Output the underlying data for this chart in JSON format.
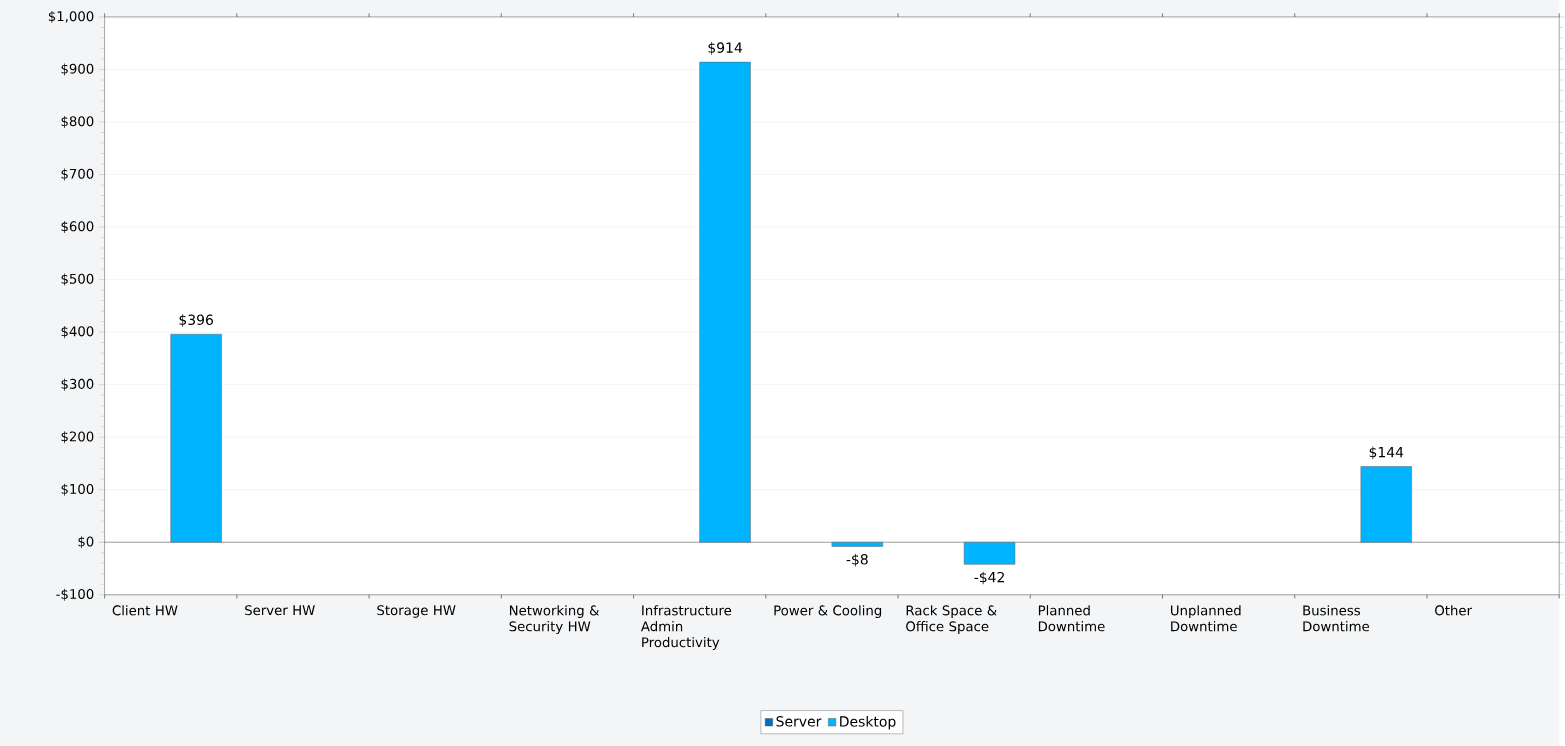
{
  "chart_data": {
    "type": "bar",
    "categories": [
      "Client HW",
      "Server HW",
      "Storage HW",
      "Networking & Security HW",
      "Infrastructure Admin Productivity",
      "Power & Cooling",
      "Rack Space & Office Space",
      "Planned Downtime",
      "Unplanned Downtime",
      "Business Downtime",
      "Other"
    ],
    "series": [
      {
        "name": "Server",
        "color": "#0070c0",
        "values": [
          null,
          null,
          null,
          null,
          null,
          null,
          null,
          null,
          null,
          null,
          null
        ]
      },
      {
        "name": "Desktop",
        "color": "#00b4ff",
        "values": [
          396,
          null,
          null,
          null,
          914,
          -8,
          -42,
          null,
          null,
          144,
          null
        ],
        "value_labels": [
          "$396",
          null,
          null,
          null,
          "$914",
          "-$8",
          "-$42",
          null,
          null,
          "$144",
          null
        ]
      }
    ],
    "ylim": [
      -100,
      1000
    ],
    "yticks": [
      {
        "value": -100,
        "label": "-$100"
      },
      {
        "value": 0,
        "label": "$0"
      },
      {
        "value": 100,
        "label": "$100"
      },
      {
        "value": 200,
        "label": "$200"
      },
      {
        "value": 300,
        "label": "$300"
      },
      {
        "value": 400,
        "label": "$400"
      },
      {
        "value": 500,
        "label": "$500"
      },
      {
        "value": 600,
        "label": "$600"
      },
      {
        "value": 700,
        "label": "$700"
      },
      {
        "value": 800,
        "label": "$800"
      },
      {
        "value": 900,
        "label": "$900"
      },
      {
        "value": 1000,
        "label": "$1,000"
      }
    ],
    "grid": "y",
    "legend": "bottom"
  }
}
